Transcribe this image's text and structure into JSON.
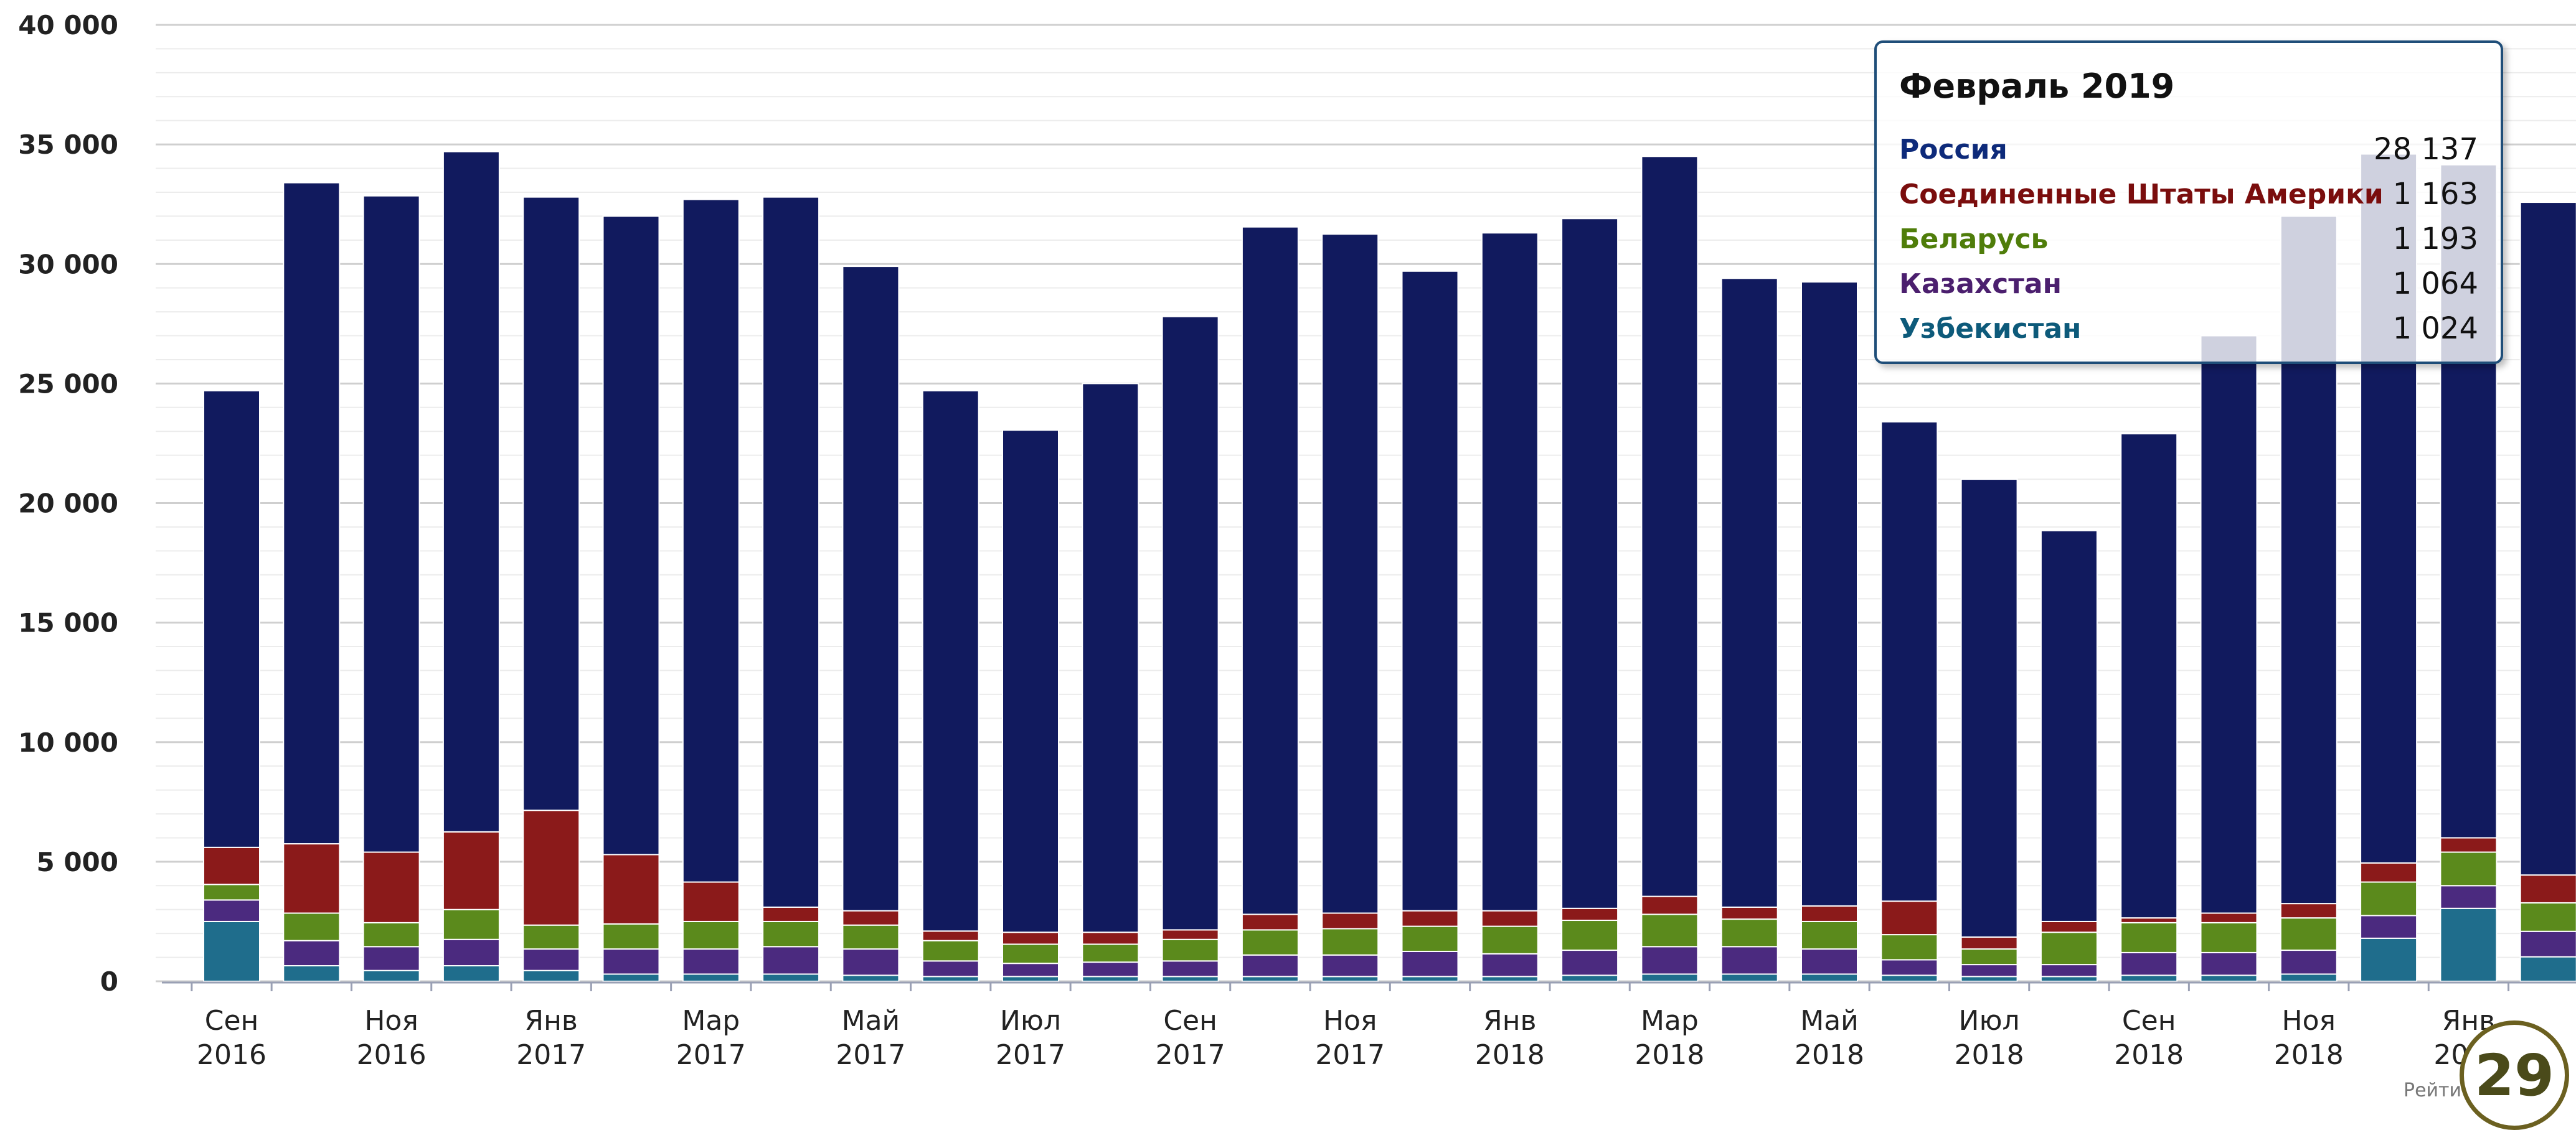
{
  "chart_data": {
    "type": "bar",
    "stacked": true,
    "ylim": [
      0,
      40000
    ],
    "yticks": [
      "0",
      "5 000",
      "10 000",
      "15 000",
      "20 000",
      "25 000",
      "30 000",
      "35 000",
      "40 000"
    ],
    "ytick_values": [
      0,
      5000,
      10000,
      15000,
      20000,
      25000,
      30000,
      35000,
      40000
    ],
    "xtick_labels": [
      {
        "index": 0,
        "month": "Сен",
        "year": "2016"
      },
      {
        "index": 2,
        "month": "Ноя",
        "year": "2016"
      },
      {
        "index": 4,
        "month": "Янв",
        "year": "2017"
      },
      {
        "index": 6,
        "month": "Мар",
        "year": "2017"
      },
      {
        "index": 8,
        "month": "Май",
        "year": "2017"
      },
      {
        "index": 10,
        "month": "Июл",
        "year": "2017"
      },
      {
        "index": 12,
        "month": "Сен",
        "year": "2017"
      },
      {
        "index": 14,
        "month": "Ноя",
        "year": "2017"
      },
      {
        "index": 16,
        "month": "Янв",
        "year": "2018"
      },
      {
        "index": 18,
        "month": "Мар",
        "year": "2018"
      },
      {
        "index": 20,
        "month": "Май",
        "year": "2018"
      },
      {
        "index": 22,
        "month": "Июл",
        "year": "2018"
      },
      {
        "index": 24,
        "month": "Сен",
        "year": "2018"
      },
      {
        "index": 26,
        "month": "Ноя",
        "year": "2018"
      },
      {
        "index": 28,
        "month": "Янв",
        "year": "2019"
      }
    ],
    "series": [
      {
        "name": "Узбекистан",
        "color": "#1f6d8c",
        "values": [
          2500,
          650,
          450,
          650,
          450,
          300,
          300,
          300,
          250,
          200,
          200,
          200,
          200,
          200,
          200,
          200,
          200,
          250,
          300,
          300,
          300,
          250,
          200,
          200,
          250,
          250,
          300,
          1800,
          3050,
          1024
        ]
      },
      {
        "name": "Казахстан",
        "color": "#4b2a7f",
        "values": [
          900,
          1050,
          1000,
          1100,
          900,
          1050,
          1050,
          1150,
          1100,
          650,
          550,
          600,
          650,
          900,
          900,
          1050,
          950,
          1050,
          1150,
          1150,
          1050,
          650,
          500,
          500,
          950,
          950,
          1000,
          950,
          950,
          1064
        ]
      },
      {
        "name": "Беларусь",
        "color": "#5b8a1c",
        "values": [
          650,
          1150,
          1000,
          1250,
          1000,
          1050,
          1150,
          1050,
          1000,
          850,
          800,
          750,
          900,
          1050,
          1100,
          1050,
          1150,
          1250,
          1350,
          1150,
          1150,
          1050,
          650,
          1350,
          1250,
          1250,
          1350,
          1400,
          1400,
          1193
        ]
      },
      {
        "name": "Соединенные Штаты Америки",
        "color": "#8b1a1a",
        "values": [
          1550,
          2900,
          2950,
          3250,
          4800,
          2900,
          1650,
          600,
          600,
          400,
          500,
          500,
          400,
          650,
          650,
          650,
          650,
          500,
          750,
          500,
          650,
          1400,
          500,
          450,
          200,
          400,
          600,
          800,
          600,
          1163
        ]
      },
      {
        "name": "Россия",
        "color": "#111a5e",
        "values": [
          19100,
          27650,
          27450,
          28450,
          25650,
          26700,
          28550,
          29700,
          26950,
          22600,
          21000,
          22950,
          25650,
          28750,
          28400,
          26750,
          28350,
          28850,
          30950,
          26300,
          26100,
          20050,
          19150,
          16350,
          20250,
          24150,
          28750,
          29650,
          28150,
          28137
        ]
      }
    ],
    "tooltip": {
      "title": "Февраль 2019",
      "rows": [
        {
          "name": "Россия",
          "value": "28 137",
          "color": "#0d2a7a"
        },
        {
          "name": "Соединенные Штаты Америки",
          "value": "1 163",
          "color": "#7a0d0d"
        },
        {
          "name": "Беларусь",
          "value": "1 193",
          "color": "#4f7d0a"
        },
        {
          "name": "Казахстан",
          "value": "1 064",
          "color": "#4b1f6e"
        },
        {
          "name": "Узбекистан",
          "value": "1 024",
          "color": "#0d5a7a"
        }
      ]
    }
  },
  "badge": "29",
  "credit": "Рейти"
}
